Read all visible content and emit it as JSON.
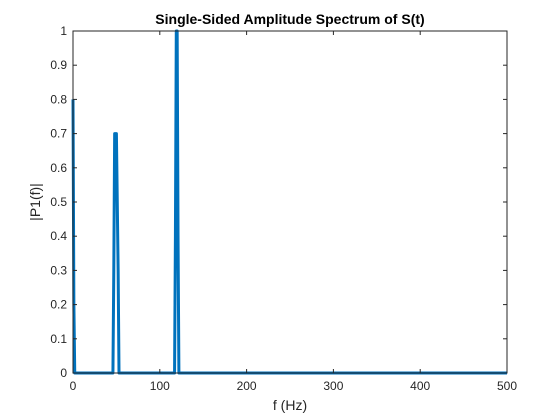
{
  "chart_data": {
    "type": "line",
    "title": "Single-Sided Amplitude Spectrum of S(t)",
    "xlabel": "f (Hz)",
    "ylabel": "|P1(f)|",
    "xlim": [
      0,
      500
    ],
    "ylim": [
      0,
      1
    ],
    "grid": false,
    "xticks": [
      0,
      100,
      200,
      300,
      400,
      500
    ],
    "xtick_labels": [
      "0",
      "100",
      "200",
      "300",
      "400",
      "500"
    ],
    "yticks": [
      0,
      0.1,
      0.2,
      0.3,
      0.4,
      0.5,
      0.6,
      0.7,
      0.8,
      0.9,
      1
    ],
    "ytick_labels": [
      "0",
      "0.1",
      "0.2",
      "0.3",
      "0.4",
      "0.5",
      "0.6",
      "0.7",
      "0.8",
      "0.9",
      "1"
    ],
    "series": [
      {
        "color": "#0072BD",
        "x": [
          0,
          1,
          2,
          46,
          47,
          48,
          50,
          52,
          53,
          117,
          118,
          119,
          120,
          121,
          122,
          500
        ],
        "y": [
          0.8,
          0.2,
          0,
          0,
          0.3,
          0.7,
          0.7,
          0.3,
          0,
          0,
          0.4,
          1,
          1,
          0.4,
          0,
          0
        ]
      }
    ]
  }
}
